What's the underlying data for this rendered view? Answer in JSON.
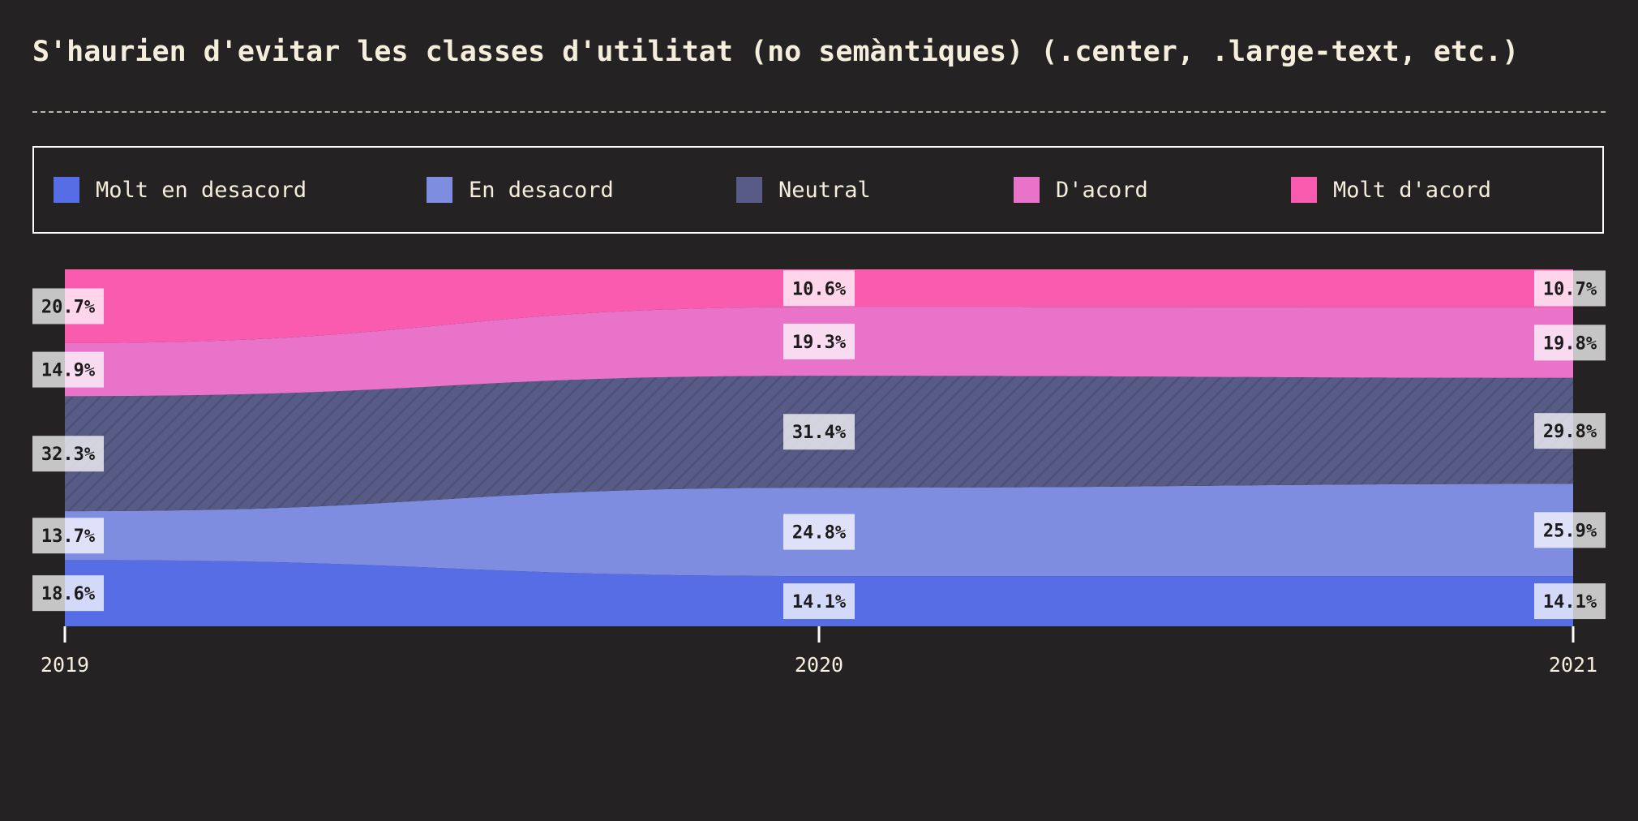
{
  "chart_data": {
    "type": "area",
    "title": "S'haurien d'evitar les classes d'utilitat (no semàntiques) (.center, .large-text, etc.)",
    "x": [
      "2019",
      "2020",
      "2021"
    ],
    "stacking": "percent",
    "legend_position": "top",
    "series": [
      {
        "name": "Molt en desacord",
        "color": "#566de6",
        "values": [
          18.6,
          14.1,
          14.1
        ],
        "labels": [
          "18.6%",
          "14.1%",
          "14.1%"
        ]
      },
      {
        "name": "En desacord",
        "color": "#7f8de0",
        "values": [
          13.7,
          24.8,
          25.9
        ],
        "labels": [
          "13.7%",
          "24.8%",
          "25.9%"
        ]
      },
      {
        "name": "Neutral",
        "color": "#575b85",
        "values": [
          32.3,
          31.4,
          29.8
        ],
        "labels": [
          "32.3%",
          "31.4%",
          "29.8%"
        ]
      },
      {
        "name": "D'acord",
        "color": "#e873c9",
        "values": [
          14.9,
          19.3,
          19.8
        ],
        "labels": [
          "14.9%",
          "19.3%",
          "19.8%"
        ]
      },
      {
        "name": "Molt d'acord",
        "color": "#f95cae",
        "values": [
          20.7,
          10.6,
          10.7
        ],
        "labels": [
          "20.7%",
          "10.6%",
          "10.7%"
        ]
      }
    ]
  }
}
